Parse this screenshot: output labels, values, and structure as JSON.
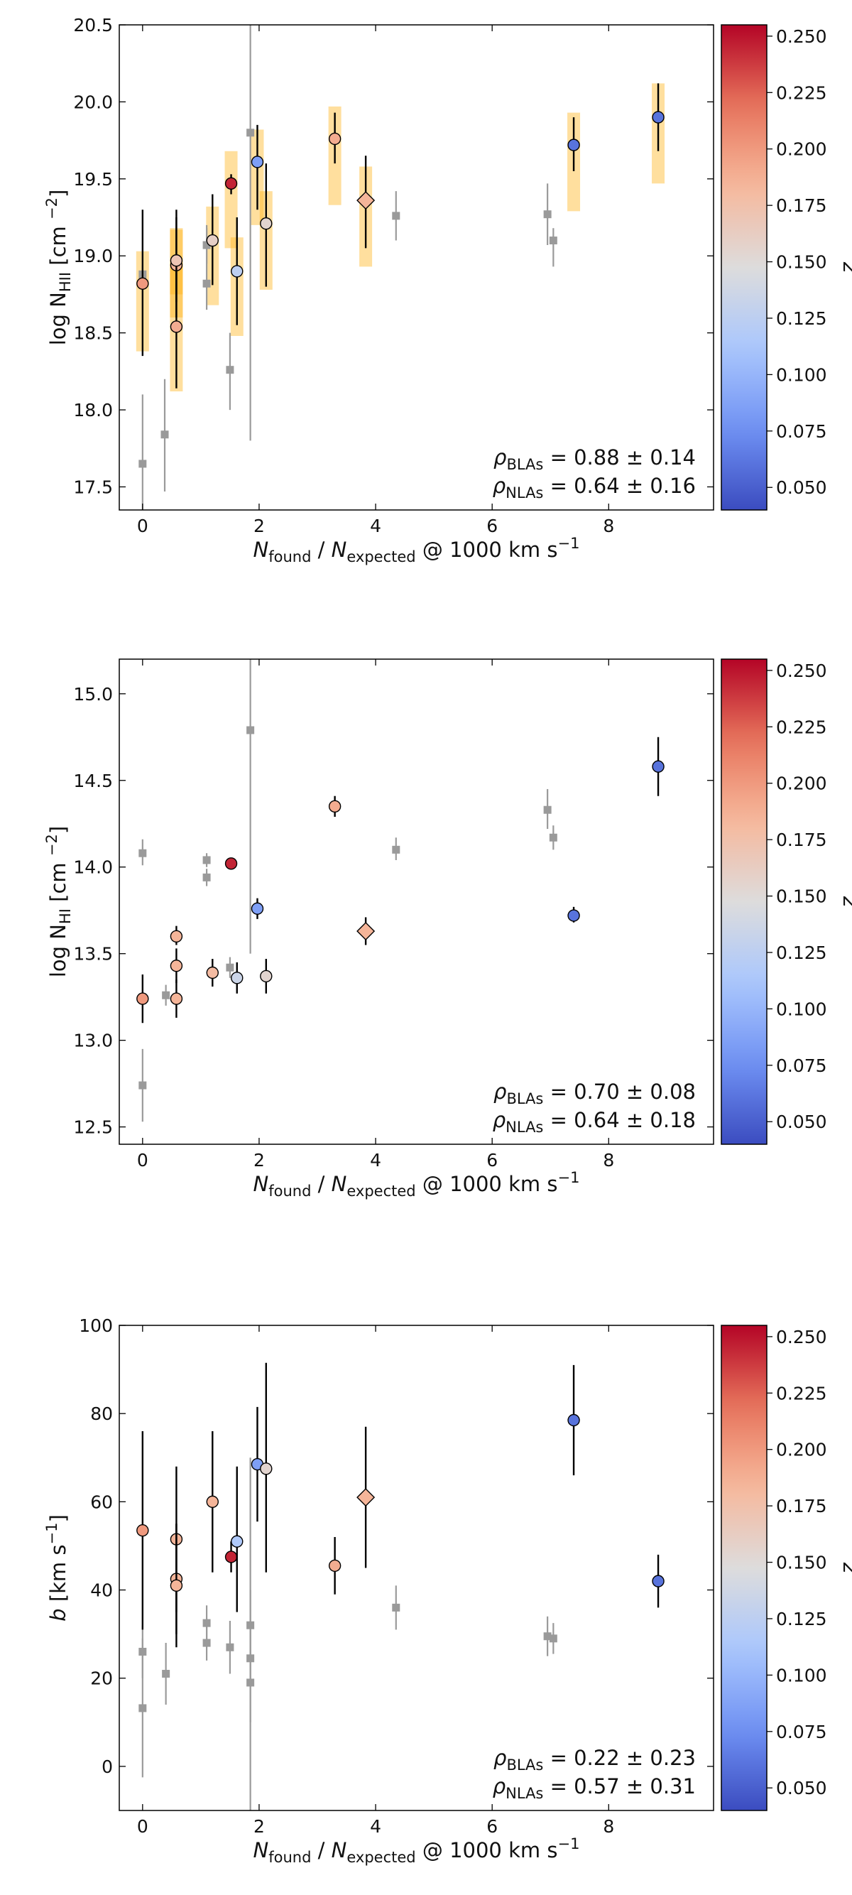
{
  "colorbar": {
    "label": "z",
    "range": [
      0.04,
      0.255
    ],
    "ticks": [
      "0.050",
      "0.075",
      "0.100",
      "0.125",
      "0.150",
      "0.175",
      "0.200",
      "0.225",
      "0.250"
    ],
    "colormap": [
      "#3b4cc0",
      "#6f91f3",
      "#aac7fd",
      "#dddcdc",
      "#f6b89c",
      "#e7755c",
      "#b40426"
    ]
  },
  "chart_data": [
    {
      "type": "scatter",
      "id": "nhii",
      "xlabel": {
        "main": "N",
        "sub1": "found",
        "mid": " / N",
        "sub2": "expected",
        "tail": " @ 1000 km s",
        "sup": "−1"
      },
      "ylabel": {
        "pre": "log N",
        "sub": "HII",
        "post": " [cm ",
        "sup": "−2",
        "close": "]"
      },
      "xlim": [
        -0.4,
        9.8
      ],
      "ylim": [
        17.35,
        20.5
      ],
      "xticks": [
        0,
        2,
        4,
        6,
        8
      ],
      "yticks": [
        17.5,
        18.0,
        18.5,
        19.0,
        19.5,
        20.0,
        20.5
      ],
      "ytick_labels": [
        "17.5",
        "18.0",
        "18.5",
        "19.0",
        "19.5",
        "20.0",
        "20.5"
      ],
      "annotations": [
        {
          "sym": "ρ",
          "sub": "BLAs",
          "text": " = 0.88 ±  0.14"
        },
        {
          "sym": "ρ",
          "sub": "NLAs",
          "text": " = 0.64 ±  0.16"
        }
      ],
      "nla": [
        {
          "x": 0.0,
          "y": 18.88,
          "lo": 18.82,
          "hi": 18.94
        },
        {
          "x": 0.38,
          "y": 17.84,
          "lo": 17.47,
          "hi": 18.2
        },
        {
          "x": 0.0,
          "y": 17.65,
          "lo": 17.35,
          "hi": 18.1
        },
        {
          "x": 1.1,
          "y": 18.82,
          "lo": 18.65,
          "hi": 19.2
        },
        {
          "x": 1.1,
          "y": 19.07,
          "lo": 18.95,
          "hi": 19.18
        },
        {
          "x": 1.5,
          "y": 18.26,
          "lo": 18.0,
          "hi": 18.5
        },
        {
          "x": 1.85,
          "y": 19.8,
          "lo": 17.8,
          "hi": 20.6
        },
        {
          "x": 4.35,
          "y": 19.26,
          "lo": 19.1,
          "hi": 19.42
        },
        {
          "x": 6.95,
          "y": 19.27,
          "lo": 19.07,
          "hi": 19.47
        },
        {
          "x": 7.05,
          "y": 19.1,
          "lo": 18.93,
          "hi": 19.18
        }
      ],
      "bla": [
        {
          "x": 0.0,
          "y": 18.82,
          "lo": 18.35,
          "hi": 19.3,
          "z": 0.2,
          "bar": [
            18.38,
            19.03
          ],
          "marker": "o"
        },
        {
          "x": 0.58,
          "y": 18.94,
          "lo": 18.6,
          "hi": 19.3,
          "z": 0.185,
          "bar": [
            18.6,
            19.17
          ],
          "marker": "o"
        },
        {
          "x": 0.58,
          "y": 18.97,
          "lo": 18.7,
          "hi": 19.25,
          "z": 0.17,
          "bar": [
            18.75,
            19.18
          ],
          "marker": "o"
        },
        {
          "x": 0.58,
          "y": 18.54,
          "lo": 18.14,
          "hi": 18.9,
          "z": 0.19,
          "bar": [
            18.12,
            18.95
          ],
          "marker": "o"
        },
        {
          "x": 1.2,
          "y": 19.1,
          "lo": 18.81,
          "hi": 19.4,
          "z": 0.16,
          "bar": [
            18.68,
            19.32
          ],
          "marker": "o"
        },
        {
          "x": 1.52,
          "y": 19.47,
          "lo": 19.4,
          "hi": 19.53,
          "z": 0.245,
          "bar": [
            19.05,
            19.68
          ],
          "marker": "o"
        },
        {
          "x": 1.62,
          "y": 18.9,
          "lo": 18.55,
          "hi": 19.25,
          "z": 0.125,
          "bar": [
            18.48,
            19.12
          ],
          "marker": "o"
        },
        {
          "x": 1.97,
          "y": 19.61,
          "lo": 19.3,
          "hi": 19.85,
          "z": 0.085,
          "bar": [
            19.2,
            19.82
          ],
          "marker": "o"
        },
        {
          "x": 2.12,
          "y": 19.21,
          "lo": 18.8,
          "hi": 19.6,
          "z": 0.155,
          "bar": [
            18.78,
            19.42
          ],
          "marker": "o"
        },
        {
          "x": 3.3,
          "y": 19.76,
          "lo": 19.6,
          "hi": 19.93,
          "z": 0.19,
          "bar": [
            19.33,
            19.97
          ],
          "marker": "o"
        },
        {
          "x": 3.83,
          "y": 19.36,
          "lo": 19.05,
          "hi": 19.65,
          "z": 0.185,
          "bar": [
            18.93,
            19.58
          ],
          "marker": "d"
        },
        {
          "x": 7.4,
          "y": 19.72,
          "lo": 19.55,
          "hi": 19.9,
          "z": 0.06,
          "bar": [
            19.29,
            19.93
          ],
          "marker": "o"
        },
        {
          "x": 8.85,
          "y": 19.9,
          "lo": 19.68,
          "hi": 20.12,
          "z": 0.06,
          "bar": [
            19.47,
            20.12
          ],
          "marker": "o"
        }
      ]
    },
    {
      "type": "scatter",
      "id": "nhi",
      "xlabel": {
        "main": "N",
        "sub1": "found",
        "mid": " / N",
        "sub2": "expected",
        "tail": " @ 1000 km s",
        "sup": "−1"
      },
      "ylabel": {
        "pre": "log N",
        "sub": "HI",
        "post": " [cm ",
        "sup": "−2",
        "close": "]"
      },
      "xlim": [
        -0.4,
        9.8
      ],
      "ylim": [
        12.4,
        15.2
      ],
      "xticks": [
        0,
        2,
        4,
        6,
        8
      ],
      "yticks": [
        12.5,
        13.0,
        13.5,
        14.0,
        14.5,
        15.0
      ],
      "ytick_labels": [
        "12.5",
        "13.0",
        "13.5",
        "14.0",
        "14.5",
        "15.0"
      ],
      "annotations": [
        {
          "sym": "ρ",
          "sub": "BLAs",
          "text": " = 0.70 ±  0.08"
        },
        {
          "sym": "ρ",
          "sub": "NLAs",
          "text": " = 0.64 ±  0.18"
        }
      ],
      "nla": [
        {
          "x": 0.0,
          "y": 14.08,
          "lo": 14.01,
          "hi": 14.16
        },
        {
          "x": 0.0,
          "y": 12.74,
          "lo": 12.53,
          "hi": 12.95
        },
        {
          "x": 0.4,
          "y": 13.26,
          "lo": 13.2,
          "hi": 13.32
        },
        {
          "x": 1.1,
          "y": 14.04,
          "lo": 14.0,
          "hi": 14.08
        },
        {
          "x": 1.1,
          "y": 13.94,
          "lo": 13.89,
          "hi": 13.99
        },
        {
          "x": 1.5,
          "y": 13.42,
          "lo": 13.36,
          "hi": 13.48
        },
        {
          "x": 1.85,
          "y": 14.79,
          "lo": 13.5,
          "hi": 15.3
        },
        {
          "x": 4.35,
          "y": 14.1,
          "lo": 14.04,
          "hi": 14.17
        },
        {
          "x": 6.95,
          "y": 14.33,
          "lo": 14.22,
          "hi": 14.45
        },
        {
          "x": 7.05,
          "y": 14.17,
          "lo": 14.1,
          "hi": 14.24
        }
      ],
      "bla": [
        {
          "x": 0.0,
          "y": 13.24,
          "lo": 13.1,
          "hi": 13.38,
          "z": 0.2,
          "marker": "o"
        },
        {
          "x": 0.58,
          "y": 13.6,
          "lo": 13.55,
          "hi": 13.66,
          "z": 0.185,
          "marker": "o"
        },
        {
          "x": 0.58,
          "y": 13.43,
          "lo": 13.33,
          "hi": 13.53,
          "z": 0.185,
          "marker": "o"
        },
        {
          "x": 0.58,
          "y": 13.24,
          "lo": 13.13,
          "hi": 13.35,
          "z": 0.185,
          "marker": "o"
        },
        {
          "x": 1.2,
          "y": 13.39,
          "lo": 13.31,
          "hi": 13.47,
          "z": 0.18,
          "marker": "o"
        },
        {
          "x": 1.52,
          "y": 14.02,
          "lo": 13.99,
          "hi": 14.05,
          "z": 0.245,
          "marker": "o"
        },
        {
          "x": 1.62,
          "y": 13.36,
          "lo": 13.27,
          "hi": 13.45,
          "z": 0.135,
          "marker": "o"
        },
        {
          "x": 1.97,
          "y": 13.76,
          "lo": 13.7,
          "hi": 13.82,
          "z": 0.085,
          "marker": "o"
        },
        {
          "x": 2.12,
          "y": 13.37,
          "lo": 13.27,
          "hi": 13.47,
          "z": 0.155,
          "marker": "o"
        },
        {
          "x": 3.3,
          "y": 14.35,
          "lo": 14.29,
          "hi": 14.41,
          "z": 0.19,
          "marker": "o"
        },
        {
          "x": 3.83,
          "y": 13.63,
          "lo": 13.55,
          "hi": 13.71,
          "z": 0.185,
          "marker": "d"
        },
        {
          "x": 7.4,
          "y": 13.72,
          "lo": 13.68,
          "hi": 13.77,
          "z": 0.06,
          "marker": "o"
        },
        {
          "x": 8.85,
          "y": 14.58,
          "lo": 14.41,
          "hi": 14.75,
          "z": 0.06,
          "marker": "o"
        }
      ]
    },
    {
      "type": "scatter",
      "id": "b",
      "xlabel": {
        "main": "N",
        "sub1": "found",
        "mid": " / N",
        "sub2": "expected",
        "tail": " @ 1000 km s",
        "sup": "−1"
      },
      "ylabel": {
        "pre": "b",
        "sub": "",
        "post": " [km s",
        "sup": "−1",
        "close": "]"
      },
      "xlim": [
        -0.4,
        9.8
      ],
      "ylim": [
        -10,
        100
      ],
      "xticks": [
        0,
        2,
        4,
        6,
        8
      ],
      "yticks": [
        0,
        20,
        40,
        60,
        80,
        100
      ],
      "ytick_labels": [
        "0",
        "20",
        "40",
        "60",
        "80",
        "100"
      ],
      "annotations": [
        {
          "sym": "ρ",
          "sub": "BLAs",
          "text": " = 0.22 ±  0.23"
        },
        {
          "sym": "ρ",
          "sub": "NLAs",
          "text": " = 0.57 ±  0.31"
        }
      ],
      "nla": [
        {
          "x": 0.0,
          "y": 26.0,
          "lo": 20.0,
          "hi": 32.0
        },
        {
          "x": 0.0,
          "y": 13.2,
          "lo": -2.5,
          "hi": 29.0
        },
        {
          "x": 0.4,
          "y": 21.0,
          "lo": 14.0,
          "hi": 28.0
        },
        {
          "x": 1.1,
          "y": 32.5,
          "lo": 28.5,
          "hi": 36.5
        },
        {
          "x": 1.1,
          "y": 28.0,
          "lo": 24.0,
          "hi": 32.0
        },
        {
          "x": 1.5,
          "y": 27.0,
          "lo": 21.0,
          "hi": 33.0
        },
        {
          "x": 1.85,
          "y": 32.0,
          "lo": 10.0,
          "hi": 70.0
        },
        {
          "x": 1.85,
          "y": 24.5,
          "lo": 18.0,
          "hi": 31.0
        },
        {
          "x": 1.85,
          "y": 19.0,
          "lo": -10.0,
          "hi": 40.0
        },
        {
          "x": 4.35,
          "y": 36.0,
          "lo": 31.0,
          "hi": 41.0
        },
        {
          "x": 6.95,
          "y": 29.5,
          "lo": 25.0,
          "hi": 34.0
        },
        {
          "x": 7.05,
          "y": 29.0,
          "lo": 25.5,
          "hi": 32.5
        }
      ],
      "bla": [
        {
          "x": 0.0,
          "y": 53.5,
          "lo": 31.0,
          "hi": 76.0,
          "z": 0.2,
          "marker": "o"
        },
        {
          "x": 0.58,
          "y": 51.5,
          "lo": 35.0,
          "hi": 68.0,
          "z": 0.185,
          "marker": "o"
        },
        {
          "x": 0.58,
          "y": 42.5,
          "lo": 30.0,
          "hi": 55.0,
          "z": 0.185,
          "marker": "o"
        },
        {
          "x": 0.58,
          "y": 41.0,
          "lo": 27.0,
          "hi": 55.0,
          "z": 0.185,
          "marker": "o"
        },
        {
          "x": 1.2,
          "y": 60.0,
          "lo": 44.0,
          "hi": 76.0,
          "z": 0.185,
          "marker": "o"
        },
        {
          "x": 1.52,
          "y": 47.5,
          "lo": 44.0,
          "hi": 51.0,
          "z": 0.245,
          "marker": "o"
        },
        {
          "x": 1.62,
          "y": 51.0,
          "lo": 35.0,
          "hi": 68.0,
          "z": 0.115,
          "marker": "o"
        },
        {
          "x": 1.97,
          "y": 68.5,
          "lo": 55.5,
          "hi": 81.5,
          "z": 0.085,
          "marker": "o"
        },
        {
          "x": 2.12,
          "y": 67.5,
          "lo": 44.0,
          "hi": 91.5,
          "z": 0.155,
          "marker": "o"
        },
        {
          "x": 3.3,
          "y": 45.5,
          "lo": 39.0,
          "hi": 52.0,
          "z": 0.19,
          "marker": "o"
        },
        {
          "x": 3.83,
          "y": 61.0,
          "lo": 45.0,
          "hi": 77.0,
          "z": 0.185,
          "marker": "d"
        },
        {
          "x": 7.4,
          "y": 78.5,
          "lo": 66.0,
          "hi": 91.0,
          "z": 0.06,
          "marker": "o"
        },
        {
          "x": 8.85,
          "y": 42.0,
          "lo": 36.0,
          "hi": 48.0,
          "z": 0.06,
          "marker": "o"
        }
      ]
    }
  ]
}
